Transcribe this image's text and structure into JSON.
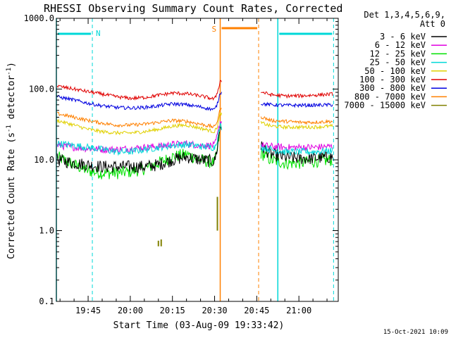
{
  "chart_data": {
    "type": "line",
    "title": "RHESSI Observing Summary Count Rates, Corrected",
    "xlabel": "Start Time (03-Aug-09 19:33:42)",
    "ylabel_main": "Corrected Count Rate (s",
    "ylabel_sup1": "-1",
    "ylabel_mid": " detector",
    "ylabel_sup2": "-1",
    "ylabel_end": ")",
    "y_scale": "log",
    "ylim": [
      0.1,
      1000
    ],
    "xlim": [
      "19:33:42",
      "21:14:00"
    ],
    "x_ticks": [
      "19:45",
      "20:00",
      "20:15",
      "20:30",
      "20:45",
      "21:00"
    ],
    "y_ticks": [
      "0.1",
      "1.0",
      "10.0",
      "100.0",
      "1000.0"
    ],
    "timestamp": "15-Oct-2021 10:09",
    "legend": {
      "placement": "right",
      "header1": "Det 1,3,4,5,6,9,",
      "header2": "Att 0"
    },
    "series": [
      {
        "name": "3 - 6 keV",
        "color": "#000000",
        "x": [
          "19:34",
          "19:40",
          "19:45",
          "19:50",
          "19:55",
          "20:00",
          "20:05",
          "20:10",
          "20:15",
          "20:20",
          "20:25",
          "20:30",
          "20:31",
          "20:32",
          "20:47",
          "20:50",
          "20:55",
          "21:00",
          "21:05",
          "21:12"
        ],
        "values": [
          10,
          9,
          8.5,
          8,
          8,
          8,
          8,
          8.5,
          10,
          11,
          10,
          9.5,
          15,
          30,
          15,
          12,
          11,
          10.5,
          10.5,
          11
        ]
      },
      {
        "name": "6 - 12 keV",
        "color": "#e000e0",
        "x": [
          "19:34",
          "19:40",
          "19:45",
          "19:50",
          "19:55",
          "20:00",
          "20:05",
          "20:10",
          "20:15",
          "20:20",
          "20:25",
          "20:30",
          "20:31",
          "20:32",
          "20:47",
          "20:50",
          "20:55",
          "21:00",
          "21:05",
          "21:12"
        ],
        "values": [
          16,
          15,
          14.5,
          14,
          14,
          14.5,
          15,
          15.5,
          16.5,
          17,
          16,
          16,
          22,
          35,
          16,
          15.5,
          15,
          15,
          15,
          15.5
        ]
      },
      {
        "name": "12 - 25 keV",
        "color": "#00e000",
        "x": [
          "19:34",
          "19:40",
          "19:45",
          "19:50",
          "19:55",
          "20:00",
          "20:05",
          "20:10",
          "20:15",
          "20:20",
          "20:25",
          "20:30",
          "20:31",
          "20:32",
          "20:47",
          "20:50",
          "20:55",
          "21:00",
          "21:05",
          "21:12"
        ],
        "values": [
          11,
          8.5,
          7,
          6.5,
          6.5,
          6.8,
          7.5,
          9,
          11,
          12,
          10,
          9,
          14,
          28,
          12,
          10,
          9,
          9,
          9.5,
          10
        ]
      },
      {
        "name": "25 - 50 keV",
        "color": "#00d8d8",
        "x": [
          "19:34",
          "19:40",
          "19:45",
          "19:50",
          "19:55",
          "20:00",
          "20:05",
          "20:10",
          "20:15",
          "20:20",
          "20:25",
          "20:30",
          "20:31",
          "20:32",
          "20:47",
          "20:50",
          "20:55",
          "21:00",
          "21:05",
          "21:12"
        ],
        "values": [
          17,
          16,
          15,
          14,
          13,
          13,
          14,
          15,
          16,
          16.5,
          15.5,
          15,
          20,
          30,
          15,
          14,
          13,
          13,
          13,
          13.5
        ]
      },
      {
        "name": "50 - 100 keV",
        "color": "#e0d000",
        "x": [
          "19:34",
          "19:40",
          "19:45",
          "19:50",
          "19:55",
          "20:00",
          "20:05",
          "20:10",
          "20:15",
          "20:20",
          "20:25",
          "20:30",
          "20:31",
          "20:32",
          "20:47",
          "20:50",
          "20:55",
          "21:00",
          "21:05",
          "21:12"
        ],
        "values": [
          36,
          31,
          27,
          25,
          24,
          24,
          25,
          27,
          30,
          31,
          28,
          25,
          30,
          45,
          33,
          30,
          29,
          29,
          29,
          30
        ]
      },
      {
        "name": "100 - 300 keV",
        "color": "#e00000",
        "x": [
          "19:34",
          "19:40",
          "19:45",
          "19:50",
          "19:55",
          "20:00",
          "20:05",
          "20:10",
          "20:15",
          "20:20",
          "20:25",
          "20:30",
          "20:31",
          "20:32",
          "20:47",
          "20:50",
          "20:55",
          "21:00",
          "21:05",
          "21:12"
        ],
        "values": [
          110,
          100,
          92,
          85,
          78,
          74,
          76,
          82,
          88,
          86,
          80,
          72,
          90,
          130,
          90,
          83,
          80,
          80,
          82,
          85
        ]
      },
      {
        "name": "300 - 800 keV",
        "color": "#0000e0",
        "x": [
          "19:34",
          "19:40",
          "19:45",
          "19:50",
          "19:55",
          "20:00",
          "20:05",
          "20:10",
          "20:15",
          "20:20",
          "20:25",
          "20:30",
          "20:31",
          "20:32",
          "20:47",
          "20:50",
          "20:55",
          "21:00",
          "21:05",
          "21:12"
        ],
        "values": [
          78,
          70,
          63,
          58,
          55,
          54,
          55,
          58,
          62,
          60,
          56,
          51,
          62,
          90,
          62,
          60,
          59,
          59,
          59,
          60
        ]
      },
      {
        "name": "800 - 7000 keV",
        "color": "#ff8000",
        "x": [
          "19:34",
          "19:40",
          "19:45",
          "19:50",
          "19:55",
          "20:00",
          "20:05",
          "20:10",
          "20:15",
          "20:20",
          "20:25",
          "20:30",
          "20:31",
          "20:32",
          "20:47",
          "20:50",
          "20:55",
          "21:00",
          "21:05",
          "21:12"
        ],
        "values": [
          45,
          40,
          36,
          33,
          31,
          31,
          32,
          34,
          36,
          35,
          32,
          29,
          36,
          52,
          40,
          36,
          35,
          34,
          34,
          35
        ]
      },
      {
        "name": "7000 - 15000 keV",
        "color": "#808000",
        "x": [
          "20:10",
          "20:10",
          "20:11",
          "20:11",
          "20:31",
          "20:32"
        ],
        "values": [
          0.6,
          0.72,
          0.6,
          0.75,
          1.0,
          3.0
        ]
      }
    ],
    "annotations": [
      {
        "label": "N",
        "type": "night",
        "color": "#00d8d8",
        "start": "19:33:42",
        "end": "19:46:30"
      },
      {
        "label": "",
        "type": "night",
        "color": "#00d8d8",
        "start": "20:52:30",
        "end": "21:12:20"
      },
      {
        "label": "S",
        "type": "saa",
        "color": "#ff8000",
        "start": "20:32:00",
        "end": "20:45:40"
      }
    ]
  }
}
